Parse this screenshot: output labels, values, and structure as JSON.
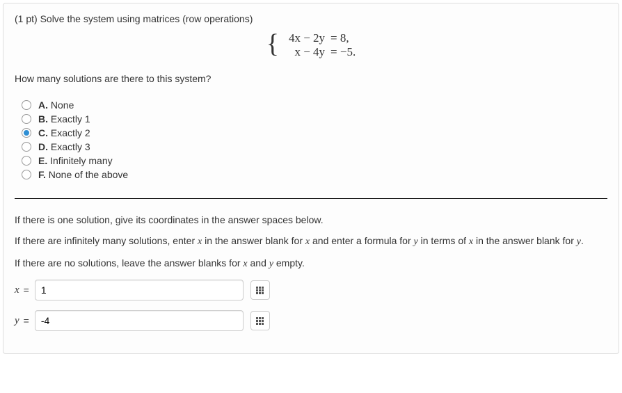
{
  "question": {
    "prompt": "(1 pt) Solve the system using matrices (row operations)",
    "eq1_lhs": "4x − 2y",
    "eq1_rhs": "= 8,",
    "eq2_lhs": "x − 4y",
    "eq2_rhs": "= −5.",
    "sub_prompt": "How many solutions are there to this system?"
  },
  "options": [
    {
      "letter": "A.",
      "text": "None",
      "selected": false
    },
    {
      "letter": "B.",
      "text": "Exactly 1",
      "selected": false
    },
    {
      "letter": "C.",
      "text": "Exactly 2",
      "selected": true
    },
    {
      "letter": "D.",
      "text": "Exactly 3",
      "selected": false
    },
    {
      "letter": "E.",
      "text": "Infinitely many",
      "selected": false
    },
    {
      "letter": "F.",
      "text": "None of the above",
      "selected": false
    }
  ],
  "instructions": {
    "line1_a": "If there is one solution, give its coordinates in the answer spaces below.",
    "line2_a": "If there are infinitely many solutions, enter ",
    "line2_b": " in the answer blank for ",
    "line2_c": " and enter a formula for ",
    "line2_d": " in terms of ",
    "line2_e": " in the answer blank for ",
    "line2_f": ".",
    "line3_a": "If there are no solutions, leave the answer blanks for ",
    "line3_b": " and ",
    "line3_c": " empty.",
    "var_x": "x",
    "var_y": "y"
  },
  "answers": {
    "x_label": "x",
    "y_label": "y",
    "eq_sign": "=",
    "x_value": "1",
    "y_value": "-4"
  },
  "colors": {
    "border": "#dddddd",
    "radio_fill": "#2f8fd4",
    "input_border": "#cccccc"
  }
}
